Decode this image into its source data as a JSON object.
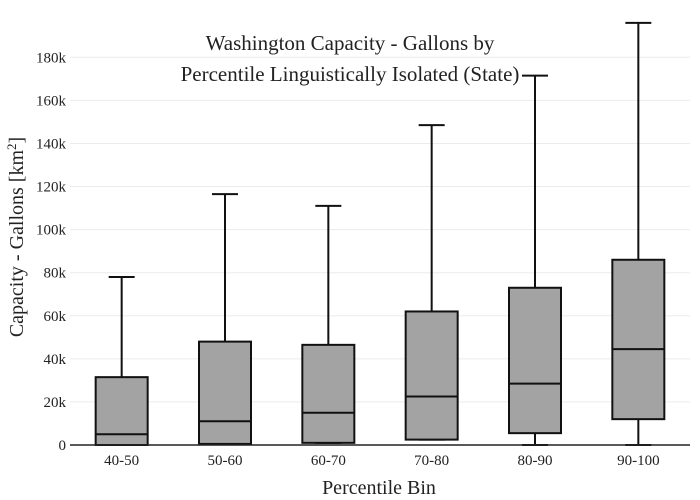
{
  "chart_data": {
    "type": "box",
    "title_lines": [
      "Washington Capacity - Gallons by",
      "Percentile Linguistically Isolated (State)"
    ],
    "xlabel": "Percentile Bin",
    "ylabel_main": "Capacity - Gallons  [km",
    "ylabel_sup": "2",
    "ylabel_end": "]",
    "ylim": [
      0,
      195000
    ],
    "y_ticks": [
      {
        "value": 0,
        "label": "0"
      },
      {
        "value": 20000,
        "label": "20k"
      },
      {
        "value": 40000,
        "label": "40k"
      },
      {
        "value": 60000,
        "label": "60k"
      },
      {
        "value": 80000,
        "label": "80k"
      },
      {
        "value": 100000,
        "label": "100k"
      },
      {
        "value": 120000,
        "label": "120k"
      },
      {
        "value": 140000,
        "label": "140k"
      },
      {
        "value": 160000,
        "label": "160k"
      },
      {
        "value": 180000,
        "label": "180k"
      }
    ],
    "grid": true,
    "categories": [
      "40-50",
      "50-60",
      "60-70",
      "70-80",
      "80-90",
      "90-100"
    ],
    "boxes": [
      {
        "category": "40-50",
        "min": 0,
        "q1": 0,
        "median": 5000,
        "q3": 31500,
        "max": 78000
      },
      {
        "category": "50-60",
        "min": 500,
        "q1": 500,
        "median": 11000,
        "q3": 48000,
        "max": 116500
      },
      {
        "category": "60-70",
        "min": 1000,
        "q1": 1000,
        "median": 15000,
        "q3": 46500,
        "max": 111000
      },
      {
        "category": "70-80",
        "min": 2500,
        "q1": 2500,
        "median": 22500,
        "q3": 62000,
        "max": 148500
      },
      {
        "category": "80-90",
        "min": 0,
        "q1": 5500,
        "median": 28500,
        "q3": 73000,
        "max": 171500
      },
      {
        "category": "90-100",
        "min": 0,
        "q1": 12000,
        "median": 44500,
        "q3": 86000,
        "max": 196000
      }
    ],
    "box_color": "#a3a3a3",
    "line_color": "#111111"
  }
}
